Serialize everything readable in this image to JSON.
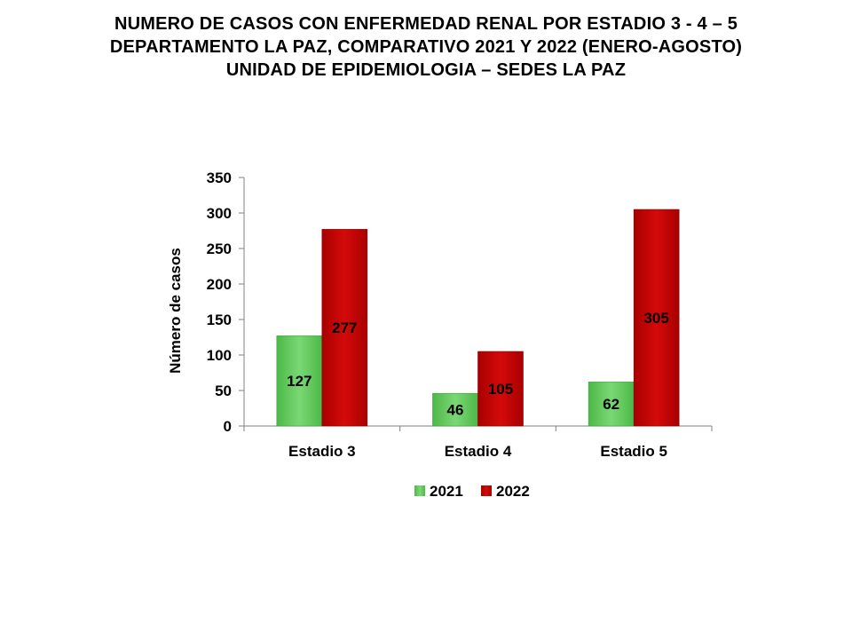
{
  "title": {
    "line1": "NUMERO DE CASOS CON ENFERMEDAD  RENAL POR ESTADIO 3 - 4 – 5",
    "line2": "DEPARTAMENTO  LA PAZ, COMPARATIVO  2021 Y 2022 (ENERO-AGOSTO)",
    "line3": "UNIDAD DE EPIDEMIOLOGIA – SEDES LA PAZ"
  },
  "chart_data": {
    "type": "bar",
    "categories": [
      "Estadio 3",
      "Estadio 4",
      "Estadio 5"
    ],
    "series": [
      {
        "name": "2021",
        "values": [
          127,
          46,
          62
        ],
        "color": "#5fc85a"
      },
      {
        "name": "2022",
        "values": [
          277,
          105,
          305
        ],
        "color": "#c00000"
      }
    ],
    "ylabel": "Número de casos",
    "xlabel": "",
    "ylim": [
      0,
      350
    ],
    "yticks": [
      0,
      50,
      100,
      150,
      200,
      250,
      300,
      350
    ],
    "grid": false,
    "legend_position": "bottom"
  }
}
